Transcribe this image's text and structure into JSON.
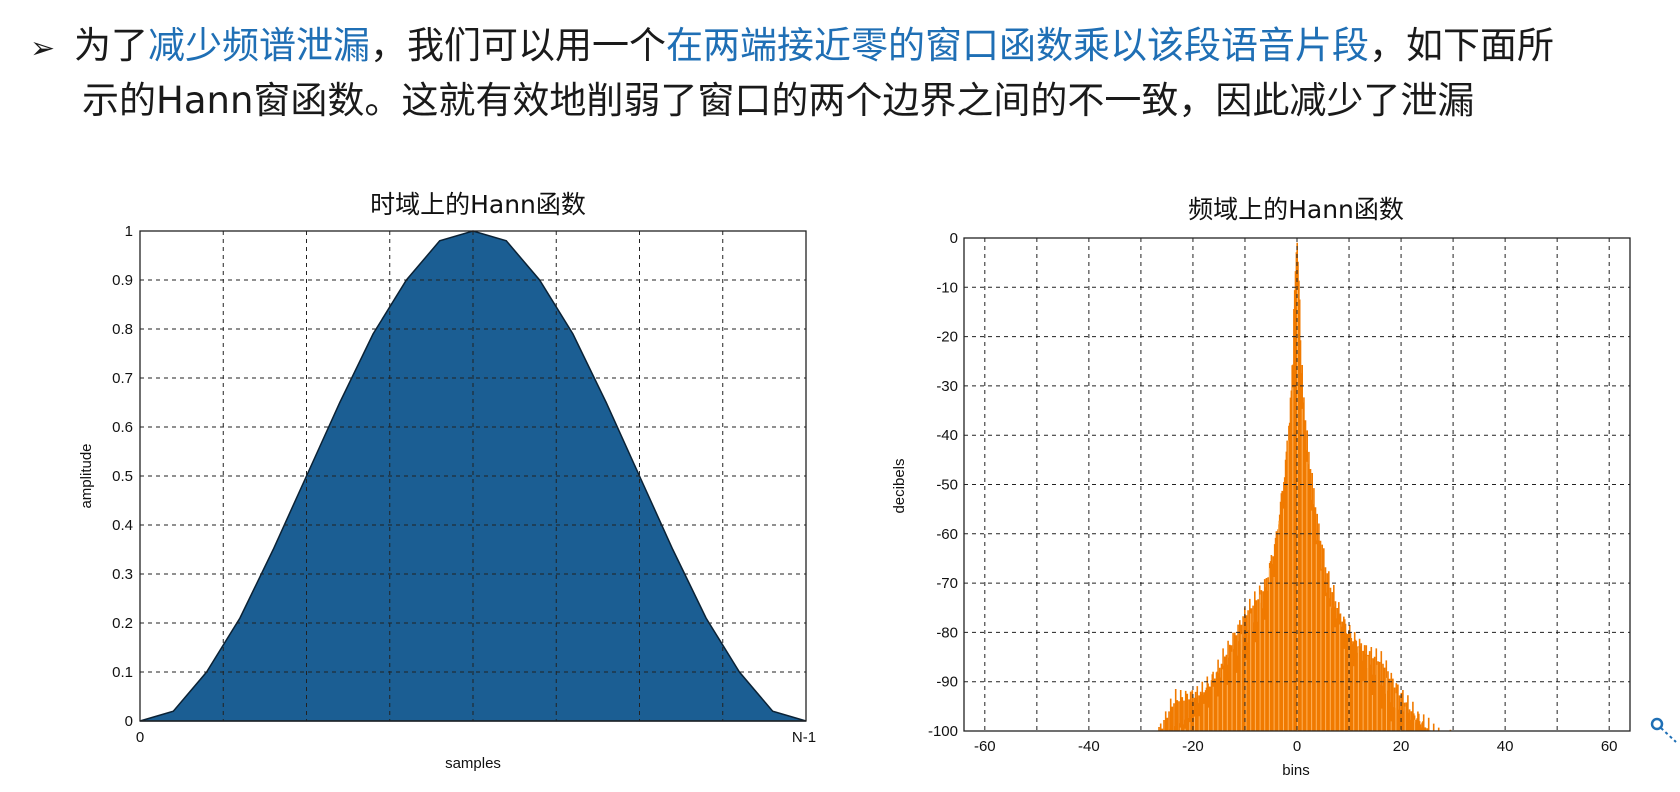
{
  "text": {
    "bullet": "➢",
    "line1_parts": [
      {
        "t": "为了",
        "hl": false
      },
      {
        "t": "减少频谱泄漏",
        "hl": true
      },
      {
        "t": "，我们可以用一个",
        "hl": false
      },
      {
        "t": "在两端接近零的窗口函数乘以该段语音片段",
        "hl": true
      },
      {
        "t": "，如下面所",
        "hl": false
      }
    ],
    "line2": "示的Hann窗函数。这就有效地削弱了窗口的两个边界之间的不一致，因此减少了泄漏"
  },
  "colors": {
    "highlight": "#1f6fb5",
    "time_fill": "#1b5e93",
    "freq_fill": "#f07a00"
  },
  "chart_data": [
    {
      "type": "area",
      "title": "时域上的Hann函数",
      "xlabel": "samples",
      "ylabel": "amplitude",
      "x_tick_labels": [
        "0",
        "N-1"
      ],
      "y_ticks": [
        0,
        0.1,
        0.2,
        0.3,
        0.4,
        0.5,
        0.6,
        0.7,
        0.8,
        0.9,
        1
      ],
      "y_tick_labels": [
        "0",
        "0.1",
        "0.2",
        "0.3",
        "0.4",
        "0.5",
        "0.6",
        "0.7",
        "0.8",
        "0.9",
        "1"
      ],
      "xlim": [
        0,
        1
      ],
      "ylim": [
        0,
        1
      ],
      "x": [
        0,
        0.05,
        0.1,
        0.15,
        0.2,
        0.25,
        0.3,
        0.35,
        0.4,
        0.45,
        0.5,
        0.55,
        0.6,
        0.65,
        0.7,
        0.75,
        0.8,
        0.85,
        0.9,
        0.95,
        1
      ],
      "y": [
        0,
        0.02,
        0.1,
        0.21,
        0.35,
        0.5,
        0.65,
        0.79,
        0.9,
        0.98,
        1,
        0.98,
        0.9,
        0.79,
        0.65,
        0.5,
        0.35,
        0.21,
        0.1,
        0.02,
        0
      ],
      "grid": true
    },
    {
      "type": "bar",
      "title": "频域上的Hann函数",
      "xlabel": "bins",
      "ylabel": "decibels",
      "x_ticks": [
        -60,
        -40,
        -20,
        0,
        20,
        40,
        60
      ],
      "x_tick_labels": [
        "-60",
        "-40",
        "-20",
        "0",
        "20",
        "40",
        "60"
      ],
      "y_ticks": [
        0,
        -10,
        -20,
        -30,
        -40,
        -50,
        -60,
        -70,
        -80,
        -90,
        -100
      ],
      "y_tick_labels": [
        "0",
        "-10",
        "-20",
        "-30",
        "-40",
        "-50",
        "-60",
        "-70",
        "-80",
        "-90",
        "-100"
      ],
      "xlim": [
        -64,
        64
      ],
      "ylim": [
        -100,
        0
      ],
      "x": [
        -30,
        -28,
        -26,
        -24,
        -22,
        -20,
        -18,
        -16,
        -14,
        -12,
        -10,
        -8,
        -6,
        -4,
        -3,
        -2,
        -1,
        0,
        1,
        2,
        3,
        4,
        6,
        8,
        10,
        12,
        14,
        16,
        18,
        20,
        22,
        24,
        26,
        28,
        30
      ],
      "y": [
        -99,
        -97,
        -95,
        -92,
        -90,
        -88,
        -86,
        -83,
        -80,
        -77,
        -74,
        -70,
        -65,
        -55,
        -47,
        -38,
        -24,
        0,
        -24,
        -38,
        -47,
        -55,
        -65,
        -70,
        -74,
        -77,
        -80,
        -83,
        -86,
        -88,
        -90,
        -92,
        -95,
        -97,
        -99
      ],
      "grid": true
    }
  ]
}
